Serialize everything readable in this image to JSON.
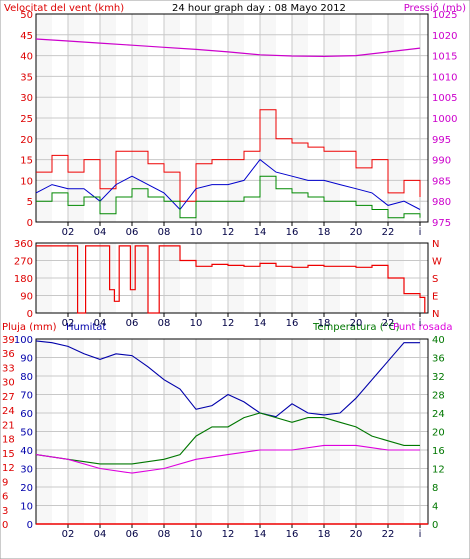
{
  "header": {
    "left_title": "Velocitat del vent (kmh)",
    "center_title": "24 hour graph day : 08 Mayo 2012",
    "right_title": "Pressió (mb)"
  },
  "colors": {
    "wind_gust": "#ee0000",
    "wind_avg": "#0000cc",
    "wind_low": "#008800",
    "pressure": "#cc00cc",
    "direction": "#ee0000",
    "rain": "#ee0000",
    "humidity": "#0000aa",
    "temperature": "#007700",
    "dewpoint": "#dd00dd",
    "grid": "#c8c8c8"
  },
  "chart_data": [
    {
      "type": "line",
      "panel": "wind-pressure",
      "x_tick_labels": [
        "02",
        "04",
        "06",
        "08",
        "10",
        "12",
        "14",
        "16",
        "18",
        "20",
        "22",
        "i"
      ],
      "y_left_ticks": [
        "0",
        "5",
        "10",
        "15",
        "20",
        "25",
        "30",
        "35",
        "40",
        "45",
        "50"
      ],
      "y_left_range": [
        0,
        50
      ],
      "y_right_ticks": [
        "975",
        "980",
        "985",
        "990",
        "995",
        "1000",
        "1005",
        "1010",
        "1015",
        "1020",
        "1025"
      ],
      "y_right_range": [
        975,
        1025
      ],
      "x_range": [
        0,
        24.5
      ],
      "grid": true,
      "series": [
        {
          "key": "gust",
          "axis": "left",
          "step": true,
          "values": [
            [
              0,
              12
            ],
            [
              1,
              16
            ],
            [
              2,
              12
            ],
            [
              3,
              15
            ],
            [
              4,
              8
            ],
            [
              5,
              17
            ],
            [
              6,
              17
            ],
            [
              7,
              14
            ],
            [
              8,
              12
            ],
            [
              9,
              5
            ],
            [
              10,
              14
            ],
            [
              11,
              15
            ],
            [
              12,
              15
            ],
            [
              13,
              17
            ],
            [
              14,
              27
            ],
            [
              15,
              20
            ],
            [
              16,
              19
            ],
            [
              17,
              18
            ],
            [
              18,
              17
            ],
            [
              19,
              17
            ],
            [
              20,
              13
            ],
            [
              21,
              15
            ],
            [
              22,
              7
            ],
            [
              23,
              10
            ],
            [
              24,
              6
            ]
          ]
        },
        {
          "key": "avg",
          "axis": "left",
          "step": false,
          "values": [
            [
              0,
              7
            ],
            [
              1,
              9
            ],
            [
              2,
              8
            ],
            [
              3,
              8
            ],
            [
              4,
              5
            ],
            [
              5,
              9
            ],
            [
              6,
              11
            ],
            [
              7,
              9
            ],
            [
              8,
              7
            ],
            [
              9,
              3
            ],
            [
              10,
              8
            ],
            [
              11,
              9
            ],
            [
              12,
              9
            ],
            [
              13,
              10
            ],
            [
              14,
              15
            ],
            [
              15,
              12
            ],
            [
              16,
              11
            ],
            [
              17,
              10
            ],
            [
              18,
              10
            ],
            [
              19,
              9
            ],
            [
              20,
              8
            ],
            [
              21,
              7
            ],
            [
              22,
              4
            ],
            [
              23,
              5
            ],
            [
              24,
              3
            ]
          ]
        },
        {
          "key": "low",
          "axis": "left",
          "step": true,
          "values": [
            [
              0,
              5
            ],
            [
              1,
              7
            ],
            [
              2,
              4
            ],
            [
              3,
              6
            ],
            [
              4,
              2
            ],
            [
              5,
              6
            ],
            [
              6,
              8
            ],
            [
              7,
              6
            ],
            [
              8,
              5
            ],
            [
              9,
              1
            ],
            [
              10,
              5
            ],
            [
              11,
              5
            ],
            [
              12,
              5
            ],
            [
              13,
              6
            ],
            [
              14,
              11
            ],
            [
              15,
              8
            ],
            [
              16,
              7
            ],
            [
              17,
              6
            ],
            [
              18,
              5
            ],
            [
              19,
              5
            ],
            [
              20,
              4
            ],
            [
              21,
              3
            ],
            [
              22,
              1
            ],
            [
              23,
              2
            ],
            [
              24,
              1
            ]
          ]
        },
        {
          "key": "pressure",
          "axis": "right",
          "step": false,
          "values": [
            [
              0,
              1019.0
            ],
            [
              2,
              1018.5
            ],
            [
              4,
              1018.0
            ],
            [
              6,
              1017.5
            ],
            [
              8,
              1017.0
            ],
            [
              10,
              1016.5
            ],
            [
              12,
              1015.9
            ],
            [
              14,
              1015.2
            ],
            [
              16,
              1014.9
            ],
            [
              18,
              1014.8
            ],
            [
              20,
              1015.0
            ],
            [
              22,
              1015.9
            ],
            [
              24,
              1016.8
            ]
          ]
        }
      ]
    },
    {
      "type": "line",
      "panel": "wind-direction",
      "x_tick_labels": [
        "02",
        "04",
        "06",
        "08",
        "10",
        "12",
        "14",
        "16",
        "18",
        "20",
        "22",
        "i"
      ],
      "y_left_ticks": [
        "0",
        "90",
        "180",
        "270",
        "360"
      ],
      "y_left_range": [
        0,
        360
      ],
      "y_right_labels": [
        "N",
        "W",
        "S",
        "E",
        "N"
      ],
      "x_range": [
        0,
        24.5
      ],
      "grid": true,
      "series": [
        {
          "key": "direction",
          "axis": "left",
          "step": true,
          "values": [
            [
              0,
              345
            ],
            [
              2,
              345
            ],
            [
              2.6,
              0
            ],
            [
              3.1,
              345
            ],
            [
              4.2,
              345
            ],
            [
              4.6,
              120
            ],
            [
              4.9,
              60
            ],
            [
              5.2,
              345
            ],
            [
              5.6,
              345
            ],
            [
              5.9,
              120
            ],
            [
              6.2,
              345
            ],
            [
              6.8,
              345
            ],
            [
              7,
              0
            ],
            [
              7.7,
              345
            ],
            [
              8.7,
              345
            ],
            [
              9,
              270
            ],
            [
              10,
              240
            ],
            [
              11,
              250
            ],
            [
              12,
              245
            ],
            [
              13,
              240
            ],
            [
              14,
              255
            ],
            [
              15,
              240
            ],
            [
              16,
              235
            ],
            [
              17,
              245
            ],
            [
              18,
              240
            ],
            [
              19,
              240
            ],
            [
              20,
              235
            ],
            [
              21,
              245
            ],
            [
              22,
              180
            ],
            [
              23,
              100
            ],
            [
              24,
              80
            ],
            [
              24.3,
              0
            ]
          ]
        }
      ]
    },
    {
      "type": "line",
      "panel": "rain-humidity-temp",
      "x_tick_labels": [
        "02",
        "04",
        "06",
        "08",
        "10",
        "12",
        "14",
        "16",
        "18",
        "20",
        "22",
        "i"
      ],
      "y_left_ticks": [
        "0",
        "3",
        "6",
        "9",
        "12",
        "15",
        "18",
        "21",
        "24",
        "27",
        "30",
        "33",
        "36",
        "39"
      ],
      "y_left_title": "Pluja (mm)",
      "y_left_range": [
        0,
        39
      ],
      "y_humidity_ticks": [
        "0",
        "10",
        "20",
        "30",
        "40",
        "50",
        "60",
        "70",
        "80",
        "90",
        "100"
      ],
      "y_humidity_title": "Humitat",
      "y_humidity_range": [
        0,
        100
      ],
      "y_right_ticks": [
        "0",
        "4",
        "8",
        "12",
        "16",
        "20",
        "24",
        "28",
        "32",
        "36",
        "40"
      ],
      "y_right_title": "Temperatura (°C)",
      "y_right_title_2": "Punt rosada",
      "y_right_range": [
        0,
        40
      ],
      "x_range": [
        0,
        24.5
      ],
      "grid": true,
      "series": [
        {
          "key": "rain",
          "axis": "left",
          "step": false,
          "values": [
            [
              0,
              0
            ],
            [
              24.5,
              0
            ]
          ]
        },
        {
          "key": "humidity",
          "axis": "humidity",
          "step": false,
          "values": [
            [
              0,
              99
            ],
            [
              1,
              98
            ],
            [
              2,
              96
            ],
            [
              3,
              92
            ],
            [
              4,
              89
            ],
            [
              5,
              92
            ],
            [
              6,
              91
            ],
            [
              7,
              85
            ],
            [
              8,
              78
            ],
            [
              9,
              73
            ],
            [
              10,
              62
            ],
            [
              11,
              64
            ],
            [
              12,
              70
            ],
            [
              13,
              66
            ],
            [
              14,
              60
            ],
            [
              15,
              58
            ],
            [
              16,
              65
            ],
            [
              17,
              60
            ],
            [
              18,
              59
            ],
            [
              19,
              60
            ],
            [
              20,
              68
            ],
            [
              21,
              78
            ],
            [
              22,
              88
            ],
            [
              23,
              98
            ],
            [
              24,
              98
            ]
          ]
        },
        {
          "key": "temperature",
          "axis": "right",
          "step": false,
          "values": [
            [
              0,
              15
            ],
            [
              2,
              14
            ],
            [
              4,
              13
            ],
            [
              6,
              13
            ],
            [
              8,
              14
            ],
            [
              9,
              15
            ],
            [
              10,
              19
            ],
            [
              11,
              21
            ],
            [
              12,
              21
            ],
            [
              13,
              23
            ],
            [
              14,
              24
            ],
            [
              15,
              23
            ],
            [
              16,
              22
            ],
            [
              17,
              23
            ],
            [
              18,
              23
            ],
            [
              19,
              22
            ],
            [
              20,
              21
            ],
            [
              21,
              19
            ],
            [
              22,
              18
            ],
            [
              23,
              17
            ],
            [
              24,
              17
            ]
          ]
        },
        {
          "key": "dewpoint",
          "axis": "right",
          "step": false,
          "values": [
            [
              0,
              15
            ],
            [
              2,
              14
            ],
            [
              4,
              12
            ],
            [
              6,
              11
            ],
            [
              8,
              12
            ],
            [
              10,
              14
            ],
            [
              12,
              15
            ],
            [
              14,
              16
            ],
            [
              16,
              16
            ],
            [
              18,
              17
            ],
            [
              20,
              17
            ],
            [
              22,
              16
            ],
            [
              24,
              16
            ]
          ]
        }
      ]
    }
  ]
}
